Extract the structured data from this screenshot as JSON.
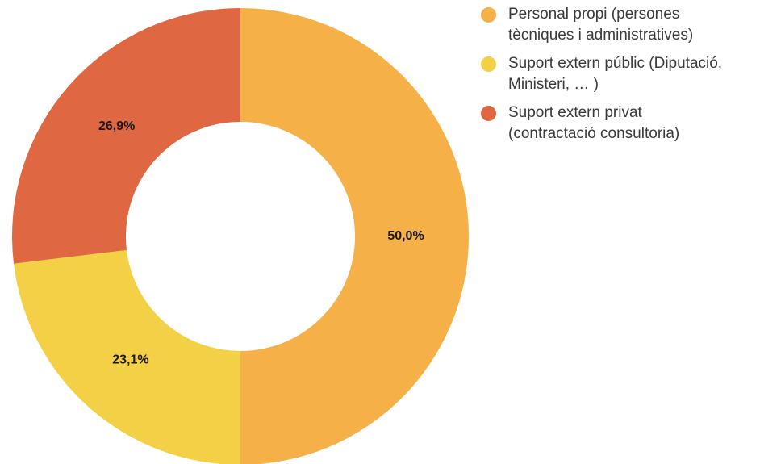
{
  "chart_data": {
    "type": "pie",
    "donut": true,
    "legend_position": "top-right",
    "slices": [
      {
        "label": "Personal propi (persones tècniques i administratives)",
        "value": 50.0,
        "display": "50,0%",
        "color": "#F5B148"
      },
      {
        "label": "Suport extern públic (Diputació, Ministeri, … )",
        "value": 23.1,
        "display": "23,1%",
        "color": "#F3D046"
      },
      {
        "label": "Suport extern privat (contractació consultoria)",
        "value": 26.9,
        "display": "26,9%",
        "color": "#DF6842"
      }
    ],
    "legend": [
      {
        "line1": "Personal propi (persones",
        "line2": "tècniques i administratives)"
      },
      {
        "line1": "Suport extern públic (Diputació,",
        "line2": "Ministeri, … )"
      },
      {
        "line1": "Suport extern privat",
        "line2": "(contractació consultoria)"
      }
    ]
  }
}
